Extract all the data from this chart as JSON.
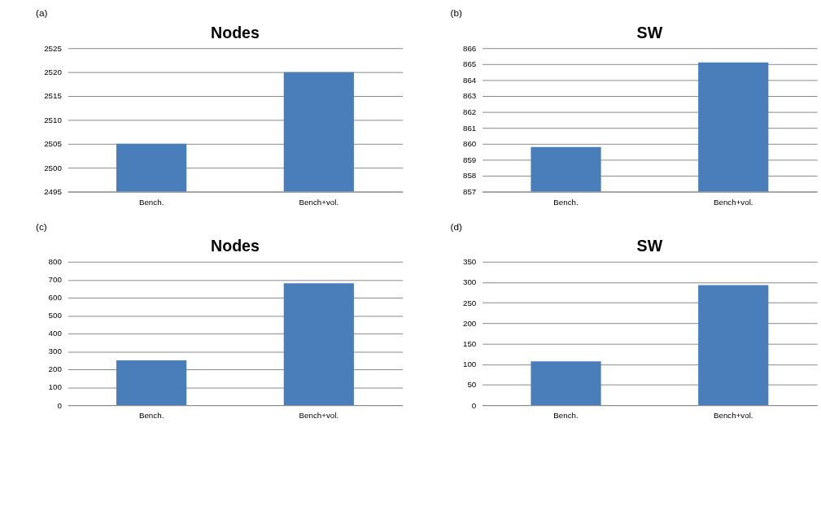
{
  "chart_data": [
    {
      "type": "bar",
      "title": "Nodes",
      "annotations": [
        "(a)"
      ],
      "categories": [
        "Bench.",
        "Bench+vol."
      ],
      "values": [
        2505,
        2520
      ],
      "color": "#4a7ebb",
      "ylim": [
        2495,
        2525
      ],
      "yticks": [
        2495,
        2500,
        2505,
        2510,
        2515,
        2520,
        2525
      ],
      "grid": "y"
    },
    {
      "type": "bar",
      "title": "SW",
      "annotations": [
        "(b)"
      ],
      "categories": [
        "Bench.",
        "Bench+vol."
      ],
      "values": [
        859.8,
        865.1
      ],
      "color": "#4a7ebb",
      "ylim": [
        857,
        866
      ],
      "yticks": [
        857,
        858,
        859,
        860,
        861,
        862,
        863,
        864,
        865,
        866
      ],
      "grid": "y"
    },
    {
      "type": "bar",
      "title": "Nodes",
      "annotations": [
        "(c)"
      ],
      "categories": [
        "Bench.",
        "Bench+vol."
      ],
      "values": [
        250,
        680
      ],
      "color": "#4a7ebb",
      "ylim": [
        0,
        800
      ],
      "yticks": [
        0,
        100,
        200,
        300,
        400,
        500,
        600,
        700,
        800
      ],
      "grid": "y"
    },
    {
      "type": "bar",
      "title": "SW",
      "annotations": [
        "(d)"
      ],
      "categories": [
        "Bench.",
        "Bench+vol."
      ],
      "values": [
        107,
        293
      ],
      "color": "#4a7ebb",
      "ylim": [
        0,
        350
      ],
      "yticks": [
        0,
        50,
        100,
        150,
        200,
        250,
        300,
        350
      ],
      "grid": "y"
    }
  ]
}
